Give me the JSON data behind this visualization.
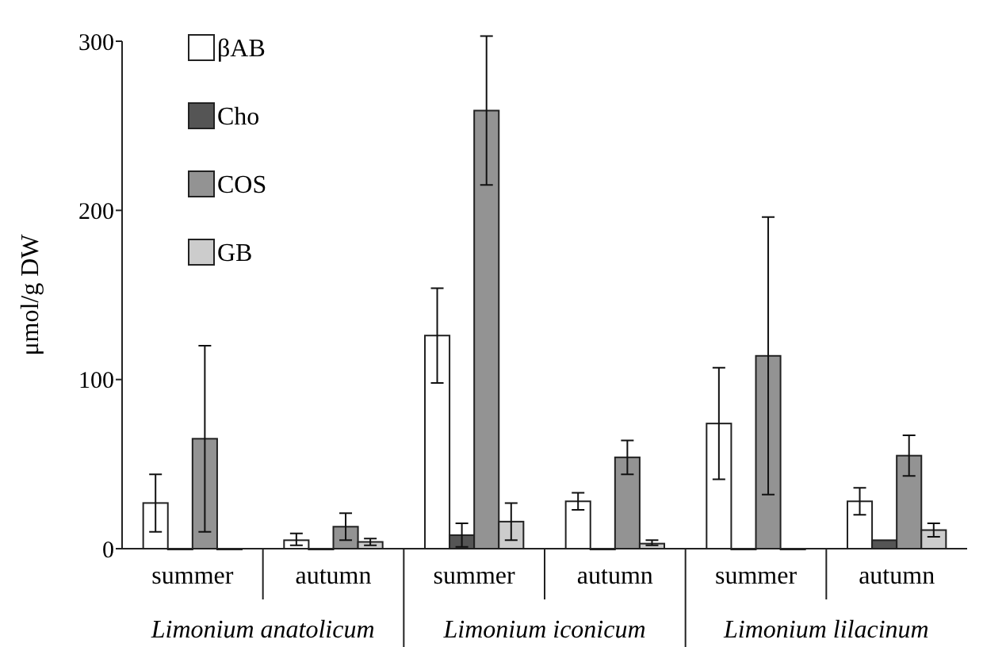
{
  "chart_data": {
    "type": "bar",
    "ylabel": "μmol/g DW",
    "categories": [
      "summer",
      "autumn",
      "summer",
      "autumn",
      "summer",
      "autumn"
    ],
    "series": [
      {
        "name": "βAB",
        "color": "#ffffff",
        "values": [
          27,
          5,
          126,
          28,
          74,
          28
        ],
        "errors": [
          17,
          [
            2,
            9
          ],
          28,
          5,
          33,
          8
        ]
      },
      {
        "name": "Cho",
        "color": "#555555",
        "values": [
          0,
          0,
          8,
          0,
          0,
          5
        ],
        "errors": [
          null,
          null,
          7,
          null,
          null,
          null
        ]
      },
      {
        "name": "COS",
        "color": "#939393",
        "values": [
          65,
          13,
          259,
          54,
          114,
          55
        ],
        "errors": [
          55,
          8,
          44,
          10,
          82,
          12
        ]
      },
      {
        "name": "GB",
        "color": "#cccccc",
        "values": [
          0,
          4,
          16,
          3,
          0,
          11
        ],
        "errors": [
          null,
          2,
          11,
          [
            2,
            5
          ],
          null,
          4
        ]
      }
    ],
    "annotations": [
      "Limonium anatolicum",
      "Limonium iconicum",
      "Limonium lilacinum"
    ],
    "ylim": [
      0,
      300
    ],
    "yticks": [
      0,
      100,
      200,
      300
    ],
    "grid": false,
    "legend": "top left"
  }
}
